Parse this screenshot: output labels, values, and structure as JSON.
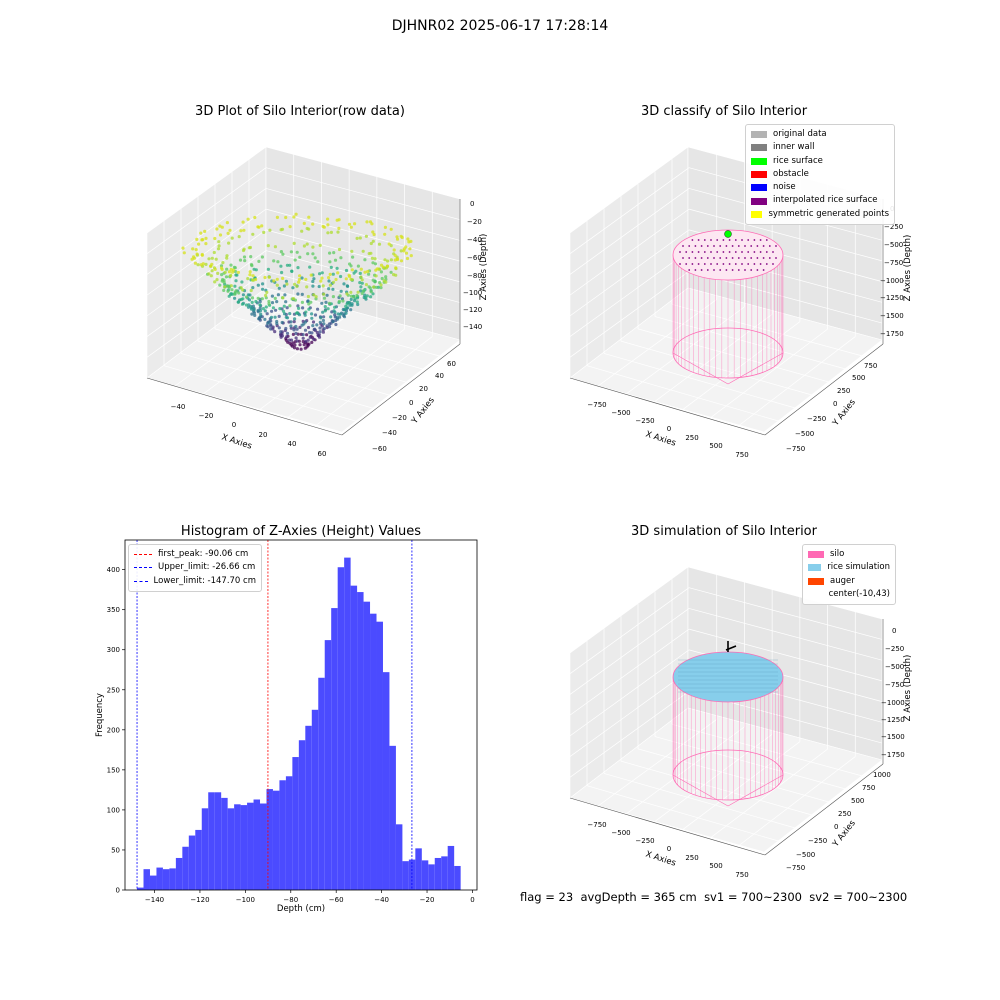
{
  "figure": {
    "title": "DJHNR02 2025-06-17 17:28:14"
  },
  "panels": {
    "raw": {
      "title": "3D Plot of Silo Interior(row data)",
      "xlabel": "X Axies",
      "ylabel": "Y Axies",
      "zlabel": "Z Axies (Depth)",
      "x_ticks": [
        "−40",
        "−20",
        "0",
        "20",
        "40",
        "60"
      ],
      "y_ticks": [
        "−60",
        "−40",
        "−20",
        "0",
        "20",
        "40",
        "60"
      ],
      "z_ticks": [
        "0",
        "−20",
        "−40",
        "−60",
        "−80",
        "−100",
        "−120",
        "−140"
      ],
      "colormap": "viridis"
    },
    "classify": {
      "title": "3D classify of Silo Interior",
      "xlabel": "X Axies",
      "ylabel": "Y Axies",
      "zlabel": "Z Axies (Depth)",
      "x_ticks": [
        "−750",
        "−500",
        "−250",
        "0",
        "250",
        "500",
        "750"
      ],
      "y_ticks": [
        "−750",
        "−500",
        "−250",
        "0",
        "250",
        "500",
        "750"
      ],
      "z_ticks": [
        "0",
        "−250",
        "−500",
        "−750",
        "−1000",
        "−1250",
        "−1500",
        "−1750"
      ],
      "legend": [
        {
          "label": "original data",
          "color": "#b3b3b3"
        },
        {
          "label": "inner wall",
          "color": "#808080"
        },
        {
          "label": "rice surface",
          "color": "#00ff00"
        },
        {
          "label": "obstacle",
          "color": "#ff0000"
        },
        {
          "label": "noise",
          "color": "#0000ff"
        },
        {
          "label": "interpolated rice surface",
          "color": "#800080"
        },
        {
          "label": "symmetric generated points",
          "color": "#ffff00"
        }
      ]
    },
    "simulation": {
      "title": "3D simulation of Silo Interior",
      "xlabel": "X Axies",
      "ylabel": "Y Axies",
      "zlabel": "Z Axies (Depth)",
      "x_ticks": [
        "−750",
        "−500",
        "−250",
        "0",
        "250",
        "500",
        "750"
      ],
      "y_ticks": [
        "−750",
        "−500",
        "−250",
        "0",
        "250",
        "500",
        "750",
        "1000"
      ],
      "z_ticks": [
        "0",
        "−250",
        "−500",
        "−750",
        "−1000",
        "−1250",
        "−1500",
        "−1750"
      ],
      "legend": [
        {
          "label": "silo",
          "color": "#ff69b4"
        },
        {
          "label": "rice simulation",
          "color": "#87ceeb"
        },
        {
          "label": "auger",
          "color": "#ff4500"
        },
        {
          "label": "center(-10,43)",
          "color": "#ffffff"
        }
      ]
    }
  },
  "chart_data": {
    "type": "bar",
    "title": "Histogram of Z-Axies (Height) Values",
    "xlabel": "Depth (cm)",
    "ylabel": "Frequency",
    "xlim": [
      -153,
      2
    ],
    "ylim": [
      0,
      437
    ],
    "x_ticks": [
      -140,
      -120,
      -100,
      -80,
      -60,
      -40,
      -20,
      0
    ],
    "y_ticks": [
      0,
      50,
      100,
      150,
      200,
      250,
      300,
      350,
      400
    ],
    "bar_color": "#4b4bff",
    "bin_start": -147.7,
    "bin_width": 2.85,
    "counts": [
      3,
      26,
      18,
      28,
      26,
      27,
      40,
      54,
      68,
      75,
      102,
      122,
      122,
      115,
      102,
      107,
      106,
      109,
      113,
      108,
      126,
      124,
      137,
      142,
      166,
      187,
      205,
      225,
      265,
      312,
      352,
      403,
      415,
      380,
      372,
      360,
      345,
      335,
      272,
      180,
      82,
      36,
      38,
      52,
      37,
      32,
      40,
      42,
      55,
      30
    ],
    "vlines": [
      {
        "label": "first_peak: -90.06 cm",
        "x": -90.06,
        "color": "#ff0000"
      },
      {
        "label": "Upper_limit: -26.66 cm",
        "x": -26.66,
        "color": "#0000ff"
      },
      {
        "label": "Lower_limit: -147.70 cm",
        "x": -147.7,
        "color": "#0000ff"
      }
    ],
    "legend_position": "top-left"
  },
  "footer": {
    "flag": "flag = 23",
    "avg_depth": "avgDepth = 365 cm",
    "sv1": "sv1 = 700~2300",
    "sv2": "sv2 = 700~2300"
  }
}
